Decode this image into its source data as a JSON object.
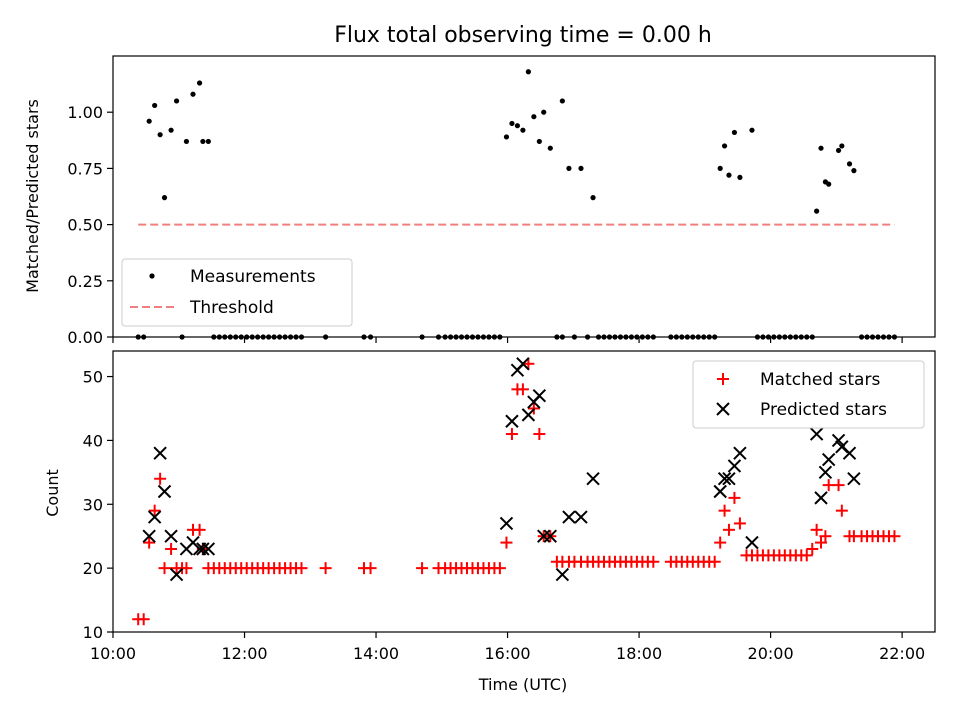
{
  "chart_data": [
    {
      "type": "scatter",
      "title": "Flux total observing time = 0.00 h",
      "ylabel": "Matched/Predicted stars",
      "xlim": [
        "10:00",
        "22:30"
      ],
      "ylim": [
        0,
        1.25
      ],
      "yticks": [
        "0.00",
        "0.25",
        "0.50",
        "0.75",
        "1.00"
      ],
      "legend_position": "lower-left",
      "series": [
        {
          "name": "Measurements",
          "color": "#000000",
          "marker": "dot",
          "x": [
            "10:33",
            "10:38",
            "10:43",
            "10:47",
            "10:53",
            "10:58",
            "11:07",
            "11:13",
            "11:19",
            "11:22",
            "11:27",
            "15:59",
            "16:04",
            "16:09",
            "16:14",
            "16:19",
            "16:24",
            "16:29",
            "16:33",
            "16:39",
            "16:50",
            "16:56",
            "17:07",
            "17:18",
            "19:14",
            "19:18",
            "19:22",
            "19:27",
            "19:32",
            "19:43",
            "20:42",
            "20:46",
            "20:50",
            "20:53",
            "21:02",
            "21:05",
            "21:12",
            "21:16"
          ],
          "y": [
            0.96,
            1.03,
            0.9,
            0.62,
            0.92,
            1.05,
            0.87,
            1.08,
            1.13,
            0.87,
            0.87,
            0.89,
            0.95,
            0.94,
            0.92,
            1.18,
            0.98,
            0.87,
            1.0,
            0.84,
            1.05,
            0.75,
            0.75,
            0.62,
            0.75,
            0.85,
            0.72,
            0.91,
            0.71,
            0.92,
            0.56,
            0.84,
            0.69,
            0.68,
            0.83,
            0.85,
            0.77,
            0.74
          ]
        },
        {
          "name": "Threshold",
          "color": "#f08080",
          "style": "dashed",
          "x": [
            "10:23",
            "21:53"
          ],
          "y": [
            0.5,
            0.5
          ]
        }
      ],
      "zero_values": [
        "10:23",
        "10:28",
        "11:03",
        "11:32",
        "11:37",
        "11:42",
        "11:47",
        "11:52",
        "11:57",
        "12:02",
        "12:07",
        "12:12",
        "12:17",
        "12:22",
        "12:27",
        "12:32",
        "12:37",
        "12:42",
        "12:47",
        "12:52",
        "13:14",
        "13:49",
        "13:55",
        "14:42",
        "14:57",
        "15:03",
        "15:08",
        "15:13",
        "15:18",
        "15:23",
        "15:28",
        "15:33",
        "15:38",
        "15:43",
        "15:48",
        "15:53",
        "16:45",
        "16:50",
        "17:01",
        "17:13",
        "17:23",
        "17:28",
        "17:33",
        "17:38",
        "17:43",
        "17:48",
        "17:53",
        "17:58",
        "18:03",
        "18:08",
        "18:13",
        "18:29",
        "18:34",
        "18:39",
        "18:44",
        "18:49",
        "18:54",
        "18:59",
        "19:04",
        "19:09",
        "19:48",
        "19:53",
        "19:58",
        "20:03",
        "20:08",
        "20:13",
        "20:18",
        "20:23",
        "20:28",
        "20:33",
        "20:38",
        "21:23",
        "21:28",
        "21:33",
        "21:38",
        "21:43",
        "21:48",
        "21:53"
      ]
    },
    {
      "type": "scatter",
      "xlabel": "Time (UTC)",
      "ylabel": "Count",
      "xlim": [
        "10:00",
        "22:30"
      ],
      "ylim": [
        10,
        54
      ],
      "xticks": [
        "10:00",
        "12:00",
        "14:00",
        "16:00",
        "18:00",
        "20:00",
        "22:00"
      ],
      "yticks": [
        "10",
        "20",
        "30",
        "40",
        "50"
      ],
      "legend_position": "top-right",
      "series": [
        {
          "name": "Matched stars",
          "color": "#ff0000",
          "marker": "plus",
          "x": [
            "10:23",
            "10:28",
            "10:33",
            "10:38",
            "10:43",
            "10:47",
            "10:53",
            "10:58",
            "11:03",
            "11:07",
            "11:13",
            "11:19",
            "11:22",
            "11:27",
            "11:32",
            "11:37",
            "11:42",
            "11:47",
            "11:52",
            "11:57",
            "12:02",
            "12:07",
            "12:12",
            "12:17",
            "12:22",
            "12:27",
            "12:32",
            "12:37",
            "12:42",
            "12:47",
            "12:52",
            "13:14",
            "13:49",
            "13:55",
            "14:42",
            "14:57",
            "15:03",
            "15:08",
            "15:13",
            "15:18",
            "15:23",
            "15:28",
            "15:33",
            "15:38",
            "15:43",
            "15:48",
            "15:53",
            "15:59",
            "16:04",
            "16:09",
            "16:14",
            "16:19",
            "16:24",
            "16:29",
            "16:33",
            "16:39",
            "16:45",
            "16:50",
            "16:56",
            "17:01",
            "17:07",
            "17:13",
            "17:18",
            "17:23",
            "17:28",
            "17:33",
            "17:38",
            "17:43",
            "17:48",
            "17:53",
            "17:58",
            "18:03",
            "18:08",
            "18:13",
            "18:29",
            "18:34",
            "18:39",
            "18:44",
            "18:49",
            "18:54",
            "18:59",
            "19:04",
            "19:09",
            "19:14",
            "19:18",
            "19:22",
            "19:27",
            "19:32",
            "19:38",
            "19:43",
            "19:48",
            "19:53",
            "19:58",
            "20:03",
            "20:08",
            "20:13",
            "20:18",
            "20:23",
            "20:28",
            "20:33",
            "20:38",
            "20:42",
            "20:46",
            "20:50",
            "20:53",
            "21:02",
            "21:05",
            "21:12",
            "21:16",
            "21:23",
            "21:28",
            "21:33",
            "21:38",
            "21:43",
            "21:48",
            "21:53"
          ],
          "y": [
            12,
            12,
            24,
            29,
            34,
            20,
            23,
            20,
            20,
            20,
            26,
            26,
            23,
            20,
            20,
            20,
            20,
            20,
            20,
            20,
            20,
            20,
            20,
            20,
            20,
            20,
            20,
            20,
            20,
            20,
            20,
            20,
            20,
            20,
            20,
            20,
            20,
            20,
            20,
            20,
            20,
            20,
            20,
            20,
            20,
            20,
            20,
            24,
            41,
            48,
            48,
            52,
            45,
            41,
            25,
            25,
            21,
            21,
            21,
            21,
            21,
            21,
            21,
            21,
            21,
            21,
            21,
            21,
            21,
            21,
            21,
            21,
            21,
            21,
            21,
            21,
            21,
            21,
            21,
            21,
            21,
            21,
            21,
            24,
            29,
            26,
            31,
            27,
            22,
            22,
            22,
            22,
            22,
            22,
            22,
            22,
            22,
            22,
            22,
            22,
            23,
            26,
            24,
            25,
            33,
            33,
            29,
            25,
            25,
            25,
            25,
            25,
            25,
            25,
            25,
            25
          ]
        },
        {
          "name": "Predicted stars",
          "color": "#000000",
          "marker": "x",
          "x": [
            "10:33",
            "10:38",
            "10:43",
            "10:47",
            "10:53",
            "10:58",
            "11:07",
            "11:13",
            "11:19",
            "11:22",
            "11:27",
            "15:59",
            "16:04",
            "16:09",
            "16:14",
            "16:19",
            "16:24",
            "16:29",
            "16:33",
            "16:39",
            "16:50",
            "16:56",
            "17:07",
            "17:18",
            "19:14",
            "19:18",
            "19:22",
            "19:27",
            "19:32",
            "19:43",
            "20:42",
            "20:46",
            "20:50",
            "20:53",
            "21:02",
            "21:05",
            "21:12",
            "21:16"
          ],
          "y": [
            25,
            28,
            38,
            32,
            25,
            19,
            23,
            24,
            23,
            23,
            23,
            27,
            43,
            51,
            52,
            44,
            46,
            47,
            25,
            25,
            19,
            28,
            28,
            34,
            32,
            34,
            34,
            36,
            38,
            24,
            41,
            31,
            35,
            37,
            40,
            39,
            38,
            34
          ]
        }
      ]
    }
  ]
}
